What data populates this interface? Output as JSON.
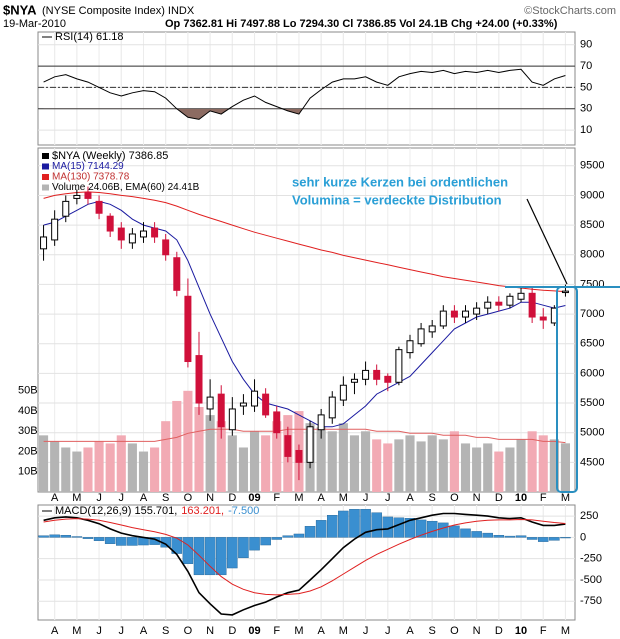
{
  "chart_data": [
    {
      "type": "line",
      "ticker": "$NYA",
      "title": "(NYSE Composite Index) INDX",
      "date": "19-Mar-2010",
      "quote": "Op 7362.81 Hi 7497.88 Lo 7294.30 Cl 7386.85 Vol 24.1B Chg +24.00 (+0.33%)",
      "credit": "©StockCharts.com",
      "series": [
        {
          "name": "RSI(14) 61.18",
          "color": "#000000",
          "values": [
            55,
            60,
            62,
            58,
            55,
            50,
            45,
            42,
            45,
            47,
            46,
            40,
            30,
            22,
            20,
            28,
            25,
            32,
            38,
            42,
            36,
            32,
            28,
            25,
            40,
            48,
            55,
            58,
            58,
            60,
            55,
            52,
            60,
            63,
            65,
            64,
            66,
            63,
            65,
            64,
            66,
            64,
            66,
            67,
            55,
            52,
            58,
            61.18
          ]
        }
      ],
      "ylim": [
        -4,
        102
      ],
      "yticks": [
        10,
        30,
        50,
        70,
        90
      ],
      "grid": true,
      "overbought": 70,
      "oversold": 30,
      "midline": 50,
      "shade_color": "#8c6b62"
    },
    {
      "type": "candlestick",
      "categories": [
        null,
        "A",
        null,
        "M",
        null,
        "J",
        null,
        "J",
        null,
        "A",
        null,
        "S",
        null,
        "O",
        null,
        "N",
        null,
        "D",
        null,
        "09",
        null,
        "F",
        null,
        "M",
        null,
        "A",
        null,
        "M",
        null,
        "J",
        null,
        "J",
        null,
        "A",
        null,
        "S",
        null,
        "O",
        null,
        "N",
        null,
        "D",
        null,
        "10",
        null,
        "F",
        null,
        "M"
      ],
      "ohlc": {
        "name": "$NYA (Weekly) 7386.85",
        "up_color": "#000000",
        "down_color": "#d0103a",
        "open": [
          8100,
          8250,
          8650,
          8950,
          9050,
          8900,
          8650,
          8450,
          8200,
          8300,
          8450,
          8250,
          7950,
          7300,
          6300,
          5400,
          5650,
          5050,
          5450,
          5450,
          5650,
          5350,
          4950,
          4700,
          4500,
          5050,
          5250,
          5550,
          5850,
          5900,
          6050,
          5950,
          5850,
          6350,
          6500,
          6700,
          6800,
          7050,
          6950,
          7000,
          7100,
          7200,
          7150,
          7250,
          7350,
          6950,
          6850,
          7362.81
        ],
        "high": [
          8500,
          8750,
          9000,
          9100,
          9150,
          9000,
          8700,
          8550,
          8450,
          8550,
          8550,
          8350,
          8050,
          7600,
          6700,
          5900,
          5800,
          5600,
          5650,
          5900,
          5750,
          5450,
          5100,
          4800,
          5200,
          5400,
          5700,
          5950,
          6000,
          6200,
          6150,
          6000,
          6450,
          6650,
          6850,
          6900,
          7150,
          7150,
          7150,
          7200,
          7300,
          7300,
          7350,
          7450,
          7450,
          7100,
          7150,
          7497.88
        ],
        "low": [
          7900,
          8150,
          8550,
          8850,
          8850,
          8600,
          8300,
          8100,
          8100,
          8200,
          8200,
          7900,
          7300,
          6100,
          5300,
          5200,
          4900,
          4950,
          5300,
          5350,
          5250,
          4900,
          4500,
          4200,
          4400,
          4900,
          5150,
          5450,
          5650,
          5800,
          5800,
          5700,
          5800,
          6250,
          6450,
          6600,
          6750,
          6850,
          6850,
          6900,
          7000,
          7050,
          7100,
          7200,
          6850,
          6750,
          6800,
          7294.3
        ],
        "close": [
          8300,
          8600,
          8900,
          9000,
          8950,
          8700,
          8400,
          8250,
          8350,
          8400,
          8300,
          8000,
          7400,
          6200,
          5500,
          5600,
          5100,
          5400,
          5500,
          5700,
          5300,
          5000,
          4600,
          4500,
          5100,
          5300,
          5600,
          5800,
          5900,
          6050,
          5900,
          5850,
          6400,
          6550,
          6750,
          6800,
          7050,
          6950,
          7050,
          7100,
          7200,
          7150,
          7300,
          7350,
          6950,
          6900,
          7100,
          7386.85
        ]
      },
      "series": [
        {
          "name": "MA(15) 7144.29",
          "color": "#1a1aa0",
          "values": [
            8500,
            8550,
            8650,
            8750,
            8850,
            8900,
            8850,
            8750,
            8600,
            8500,
            8450,
            8400,
            8250,
            7900,
            7450,
            7000,
            6600,
            6200,
            5900,
            5650,
            5500,
            5450,
            5400,
            5300,
            5200,
            5100,
            5100,
            5150,
            5300,
            5450,
            5650,
            5750,
            5850,
            5950,
            6150,
            6350,
            6550,
            6750,
            6850,
            6950,
            7000,
            7050,
            7100,
            7200,
            7200,
            7150,
            7100,
            7144.29
          ]
        },
        {
          "name": "MA(130) 7378.78",
          "color": "#e02020",
          "values": [
            8950,
            9000,
            9030,
            9050,
            9060,
            9050,
            9030,
            9000,
            8980,
            8950,
            8920,
            8880,
            8820,
            8750,
            8680,
            8620,
            8560,
            8500,
            8440,
            8380,
            8330,
            8280,
            8230,
            8180,
            8130,
            8080,
            8040,
            7990,
            7950,
            7910,
            7870,
            7830,
            7790,
            7750,
            7710,
            7670,
            7630,
            7600,
            7570,
            7540,
            7510,
            7480,
            7460,
            7440,
            7420,
            7400,
            7390,
            7378.78
          ]
        }
      ],
      "volume": {
        "name": "Volume 24.06B, EMA(60) 24.41B",
        "axis": "y2",
        "up_color": "#b4b4b4",
        "down_color": "#f2aab4",
        "ema_color": "#e06060",
        "values": [
          28,
          25,
          22,
          20,
          22,
          25,
          24,
          28,
          24,
          20,
          22,
          35,
          45,
          50,
          42,
          38,
          35,
          28,
          22,
          30,
          28,
          35,
          38,
          40,
          34,
          32,
          30,
          34,
          28,
          30,
          26,
          24,
          26,
          28,
          25,
          28,
          26,
          30,
          24,
          22,
          24,
          20,
          22,
          26,
          30,
          28,
          26,
          24.06
        ],
        "ema": [
          25,
          25,
          25,
          25,
          25,
          25,
          25,
          25,
          25,
          25,
          25,
          26,
          27,
          29,
          30,
          31,
          31,
          31,
          30,
          30,
          30,
          30,
          31,
          31,
          31,
          31,
          31,
          31,
          31,
          31,
          30,
          30,
          30,
          29,
          29,
          29,
          28,
          28,
          28,
          27,
          27,
          26,
          26,
          26,
          26,
          25,
          25,
          24.41
        ]
      },
      "ylim": [
        4000,
        9800
      ],
      "yticks": [
        4500,
        5000,
        5500,
        6000,
        6500,
        7000,
        7500,
        8000,
        8500,
        9000,
        9500
      ],
      "y2lim": [
        0,
        170
      ],
      "y2ticks": [
        {
          "value": 10,
          "label": "10B"
        },
        {
          "value": 20,
          "label": "20B"
        },
        {
          "value": 30,
          "label": "30B"
        },
        {
          "value": 40,
          "label": "40B"
        },
        {
          "value": 50,
          "label": "50B"
        }
      ],
      "grid": true,
      "annotations": [
        "sehr kurze Kerzen bei ordentlichen",
        "Volumina = verdeckte Distribution"
      ]
    },
    {
      "type": "macd",
      "categories": [
        null,
        "A",
        null,
        "M",
        null,
        "J",
        null,
        "J",
        null,
        "A",
        null,
        "S",
        null,
        "O",
        null,
        "N",
        null,
        "D",
        null,
        "09",
        null,
        "F",
        null,
        "M",
        null,
        "A",
        null,
        "M",
        null,
        "J",
        null,
        "J",
        null,
        "A",
        null,
        "S",
        null,
        "O",
        null,
        "N",
        null,
        "D",
        null,
        "10",
        null,
        "F",
        null,
        "M"
      ],
      "series": [
        {
          "name": "MACD(12,26,9) 155.701,",
          "color": "#000000",
          "values": [
            200,
            230,
            240,
            230,
            200,
            160,
            100,
            50,
            20,
            0,
            -20,
            -80,
            -200,
            -400,
            -650,
            -780,
            -900,
            -910,
            -850,
            -800,
            -760,
            -700,
            -650,
            -620,
            -500,
            -380,
            -250,
            -120,
            -20,
            60,
            90,
            100,
            150,
            200,
            230,
            260,
            280,
            280,
            270,
            260,
            250,
            230,
            220,
            230,
            180,
            140,
            140,
            155.701
          ]
        },
        {
          "name": "163.201,",
          "color": "#e02020",
          "values": [
            180,
            200,
            215,
            220,
            215,
            200,
            175,
            145,
            115,
            90,
            65,
            35,
            -10,
            -90,
            -210,
            -340,
            -460,
            -550,
            -610,
            -650,
            -670,
            -675,
            -670,
            -660,
            -630,
            -580,
            -510,
            -430,
            -350,
            -270,
            -200,
            -140,
            -80,
            -25,
            25,
            70,
            110,
            145,
            170,
            190,
            200,
            205,
            205,
            210,
            205,
            190,
            175,
            163.201
          ]
        },
        {
          "name": "-7.500",
          "color": "#3a8fd0",
          "kind": "histogram",
          "values": [
            20,
            30,
            25,
            10,
            -15,
            -40,
            -75,
            -95,
            -95,
            -90,
            -85,
            -115,
            -190,
            -310,
            -440,
            -440,
            -440,
            -360,
            -240,
            -150,
            -90,
            -25,
            20,
            40,
            130,
            200,
            260,
            310,
            330,
            330,
            290,
            240,
            230,
            225,
            205,
            190,
            170,
            135,
            100,
            70,
            50,
            25,
            15,
            20,
            -25,
            -50,
            -35,
            -7.5
          ]
        }
      ],
      "ylim": [
        -970,
        380
      ],
      "yticks": [
        -750,
        -500,
        -250,
        0,
        250
      ],
      "grid": true
    }
  ]
}
